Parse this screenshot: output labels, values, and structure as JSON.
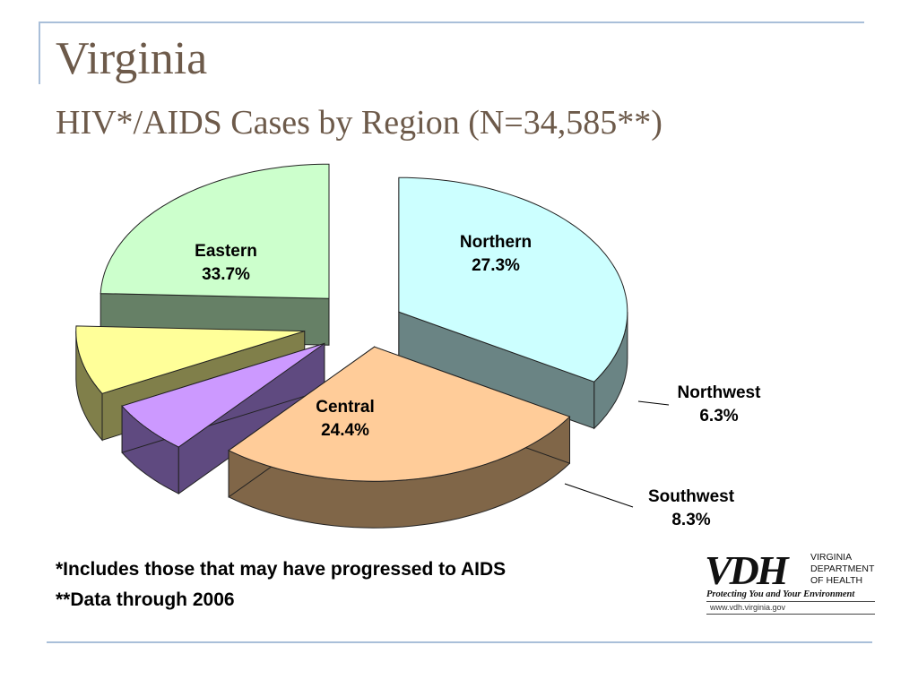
{
  "slide": {
    "title": "Virginia",
    "subtitle": "HIV*/AIDS Cases by Region (N=34,585**)"
  },
  "chart_data": {
    "type": "pie",
    "exploded": true,
    "three_d": true,
    "slices": [
      {
        "label": "Eastern",
        "value": 33.7,
        "value_label": "33.7%",
        "color": "#ccffff",
        "side_color": "#6a8484"
      },
      {
        "label": "Northern",
        "value": 27.3,
        "value_label": "27.3%",
        "color": "#ffcc99",
        "side_color": "#806648"
      },
      {
        "label": "Northwest",
        "value": 6.3,
        "value_label": "6.3%",
        "color": "#cc99ff",
        "side_color": "#5f4a80"
      },
      {
        "label": "Southwest",
        "value": 8.3,
        "value_label": "8.3%",
        "color": "#ffff99",
        "side_color": "#807f4a"
      },
      {
        "label": "Central",
        "value": 24.4,
        "value_label": "24.4%",
        "color": "#ccffcc",
        "side_color": "#668066"
      }
    ]
  },
  "footnotes": [
    "*Includes those that may have progressed to AIDS",
    "**Data through 2006"
  ],
  "logo": {
    "mark": "VDH",
    "dept_line1": "VIRGINIA",
    "dept_line2": "DEPARTMENT",
    "dept_line3": "OF HEALTH",
    "tagline": "Protecting You and Your Environment",
    "url": "www.vdh.virginia.gov"
  }
}
